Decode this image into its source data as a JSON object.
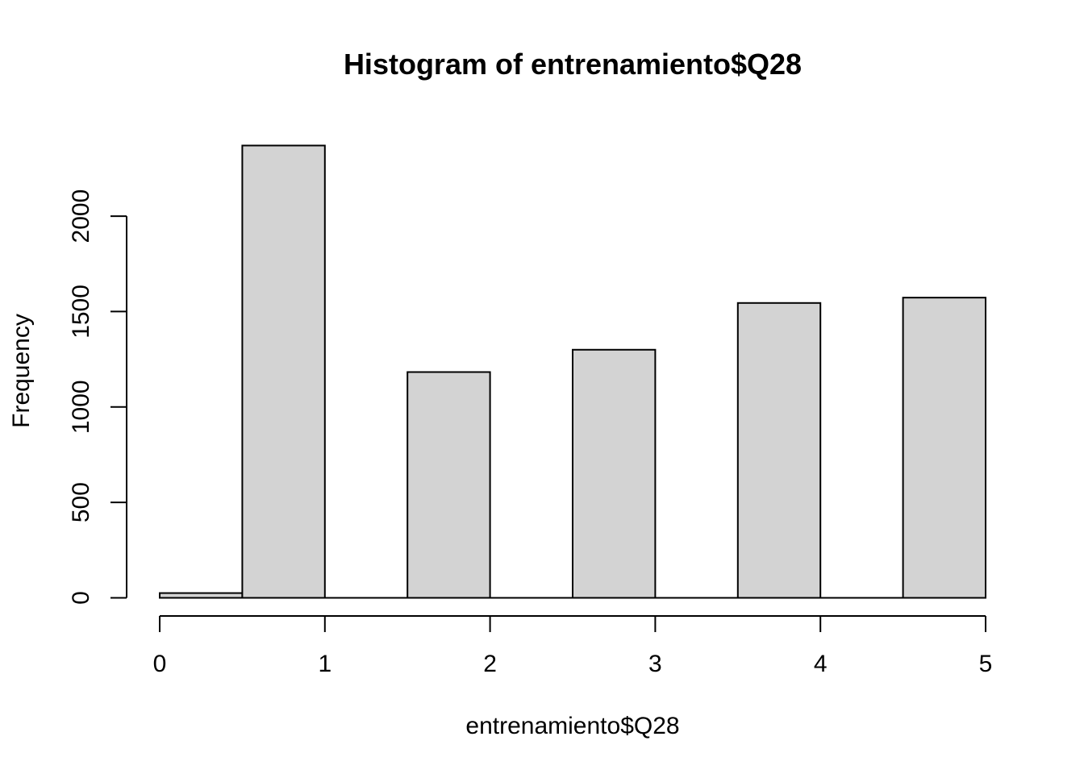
{
  "chart_data": {
    "type": "bar",
    "title": "Histogram of entrenamiento$Q28",
    "xlabel": "entrenamiento$Q28",
    "ylabel": "Frequency",
    "bin_edges": [
      0,
      0.5,
      1,
      1.5,
      2,
      2.5,
      3,
      3.5,
      4,
      4.5,
      5
    ],
    "values": [
      25,
      2370,
      0,
      1183,
      0,
      1300,
      0,
      1545,
      0,
      1573
    ],
    "xlim": [
      0,
      5
    ],
    "ylim": [
      0,
      2370
    ],
    "x_ticks": [
      "0",
      "1",
      "2",
      "3",
      "4",
      "5"
    ],
    "y_ticks": [
      "0",
      "500",
      "1000",
      "1500",
      "2000"
    ],
    "bar_color": "#d3d3d3",
    "border_color": "#000000",
    "grid": false
  }
}
